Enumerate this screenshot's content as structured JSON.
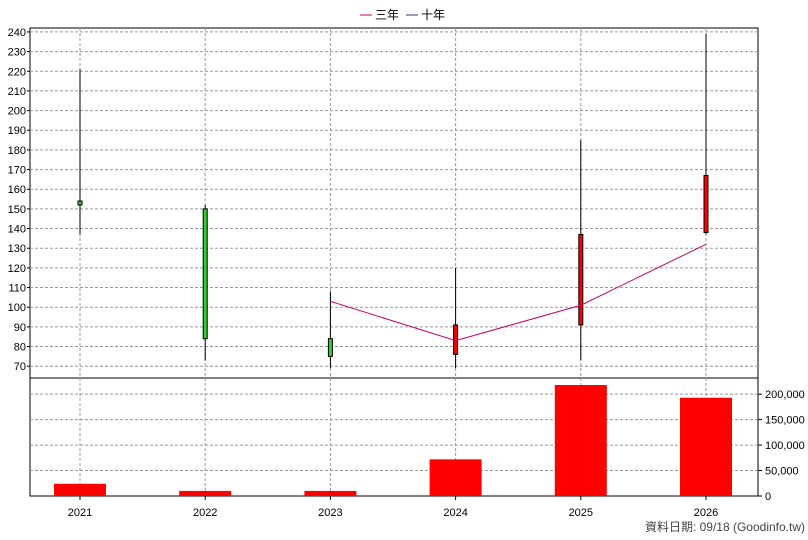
{
  "legend": [
    {
      "label": "三年",
      "color": "#cc0066"
    },
    {
      "label": "十年",
      "color": "#4a2a8a"
    }
  ],
  "footer": "資料日期: 09/18  (Goodinfo.tw)",
  "chart_data": {
    "type": "candlestick+line+bar",
    "categories": [
      "2021",
      "2022",
      "2023",
      "2024",
      "2025",
      "2026"
    ],
    "price_axis": {
      "ylim": [
        64,
        242
      ],
      "ticks": [
        70,
        80,
        90,
        100,
        110,
        120,
        130,
        140,
        150,
        160,
        170,
        180,
        190,
        200,
        210,
        220,
        230,
        240
      ]
    },
    "candles": [
      {
        "x": "2021",
        "open": 152,
        "close": 154,
        "high": 221,
        "low": 137,
        "color": "#33cc33"
      },
      {
        "x": "2022",
        "open": 150,
        "close": 84,
        "high": 152,
        "low": 73,
        "color": "#33cc33"
      },
      {
        "x": "2023",
        "open": 84,
        "close": 75,
        "high": 108,
        "low": 69,
        "color": "#33cc33"
      },
      {
        "x": "2024",
        "open": 76,
        "close": 91,
        "high": 120,
        "low": 69,
        "color": "#ff0000"
      },
      {
        "x": "2025",
        "open": 91,
        "close": 137,
        "high": 185,
        "low": 73,
        "color": "#ff0000"
      },
      {
        "x": "2026",
        "open": 138,
        "close": 167,
        "high": 239,
        "low": 137,
        "color": "#ff0000"
      }
    ],
    "series": [
      {
        "name": "三年",
        "color": "#cc0066",
        "points": [
          [
            "2023",
            103
          ],
          [
            "2024",
            83
          ],
          [
            "2025",
            101
          ],
          [
            "2026",
            132
          ]
        ]
      }
    ],
    "volume_axis": {
      "ylim": [
        0,
        220000
      ],
      "ticks": [
        0,
        50000,
        100000,
        150000,
        200000
      ],
      "tick_labels": [
        "0",
        "50,000",
        "100,000",
        "150,000",
        "200,000"
      ]
    },
    "volume": {
      "color": "#ff0000",
      "values": [
        24000,
        10000,
        10000,
        72000,
        218000,
        193000
      ]
    }
  }
}
